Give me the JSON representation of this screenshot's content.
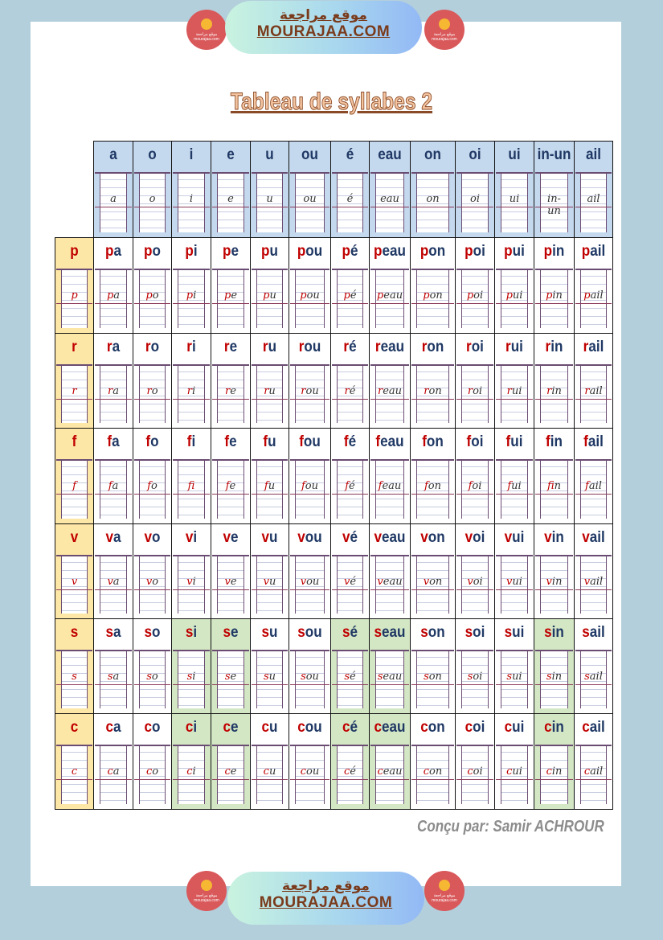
{
  "banner": {
    "arabic": "موقع مراجعة",
    "site": "MOURAJAA.COM",
    "badge_text": "موقع مراجعة mourajaa.com"
  },
  "title": "Tableau de syllabes 2",
  "colors": {
    "header": "#c5d9ee",
    "consonant": "#fde7a6",
    "highlight": "#d3e7c4",
    "vowel_text": "#1f3864",
    "consonant_text": "#c00000"
  },
  "vowels": [
    "a",
    "o",
    "i",
    "e",
    "u",
    "ou",
    "é",
    "eau",
    "on",
    "oi",
    "ui",
    "in-un",
    "ail"
  ],
  "rows": [
    {
      "consonant": "p",
      "syllables": [
        "pa",
        "po",
        "pi",
        "pe",
        "pu",
        "pou",
        "pé",
        "peau",
        "pon",
        "poi",
        "pui",
        "pin",
        "pail"
      ],
      "highlighted": []
    },
    {
      "consonant": "r",
      "syllables": [
        "ra",
        "ro",
        "ri",
        "re",
        "ru",
        "rou",
        "ré",
        "reau",
        "ron",
        "roi",
        "rui",
        "rin",
        "rail"
      ],
      "highlighted": []
    },
    {
      "consonant": "f",
      "syllables": [
        "fa",
        "fo",
        "fi",
        "fe",
        "fu",
        "fou",
        "fé",
        "feau",
        "fon",
        "foi",
        "fui",
        "fin",
        "fail"
      ],
      "highlighted": []
    },
    {
      "consonant": "v",
      "syllables": [
        "va",
        "vo",
        "vi",
        "ve",
        "vu",
        "vou",
        "vé",
        "veau",
        "von",
        "voi",
        "vui",
        "vin",
        "vail"
      ],
      "highlighted": []
    },
    {
      "consonant": "s",
      "syllables": [
        "sa",
        "so",
        "si",
        "se",
        "su",
        "sou",
        "sé",
        "seau",
        "son",
        "soi",
        "sui",
        "sin",
        "sail"
      ],
      "highlighted": [
        2,
        3,
        6,
        7,
        11
      ]
    },
    {
      "consonant": "c",
      "syllables": [
        "ca",
        "co",
        "ci",
        "ce",
        "cu",
        "cou",
        "cé",
        "ceau",
        "con",
        "coi",
        "cui",
        "cin",
        "cail"
      ],
      "highlighted": [
        2,
        3,
        6,
        7,
        11
      ]
    }
  ],
  "credit": "Conçu par: Samir ACHROUR"
}
